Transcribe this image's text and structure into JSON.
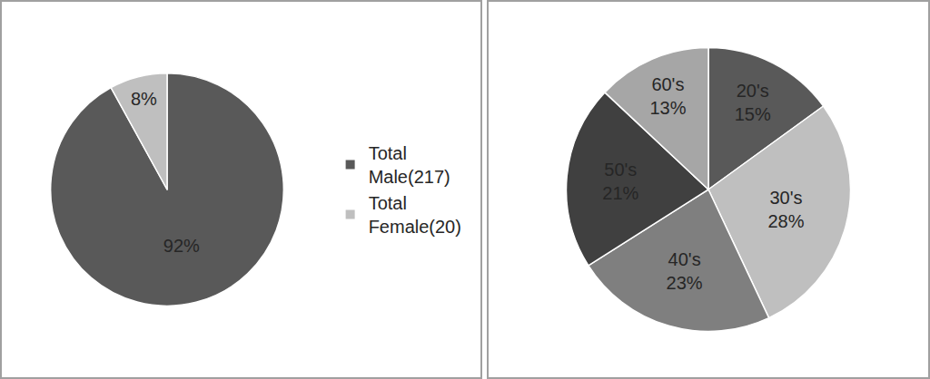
{
  "chart_data": [
    {
      "type": "pie",
      "categories": [
        "Total Male(217)",
        "Total Female(20)"
      ],
      "values": [
        92,
        8
      ],
      "value_labels": [
        "92%",
        "8%"
      ],
      "data_labels": true,
      "colors": [
        "#595959",
        "#bfbfbf"
      ],
      "legend": "right"
    },
    {
      "type": "pie",
      "categories": [
        "20's",
        "30's",
        "40's",
        "50's",
        "60's"
      ],
      "values": [
        15,
        28,
        23,
        21,
        13
      ],
      "value_labels": [
        "15%",
        "28%",
        "23%",
        "21%",
        "13%"
      ],
      "data_labels": true,
      "colors": [
        "#595959",
        "#bfbfbf",
        "#7f7f7f",
        "#404040",
        "#a6a6a6"
      ]
    }
  ]
}
